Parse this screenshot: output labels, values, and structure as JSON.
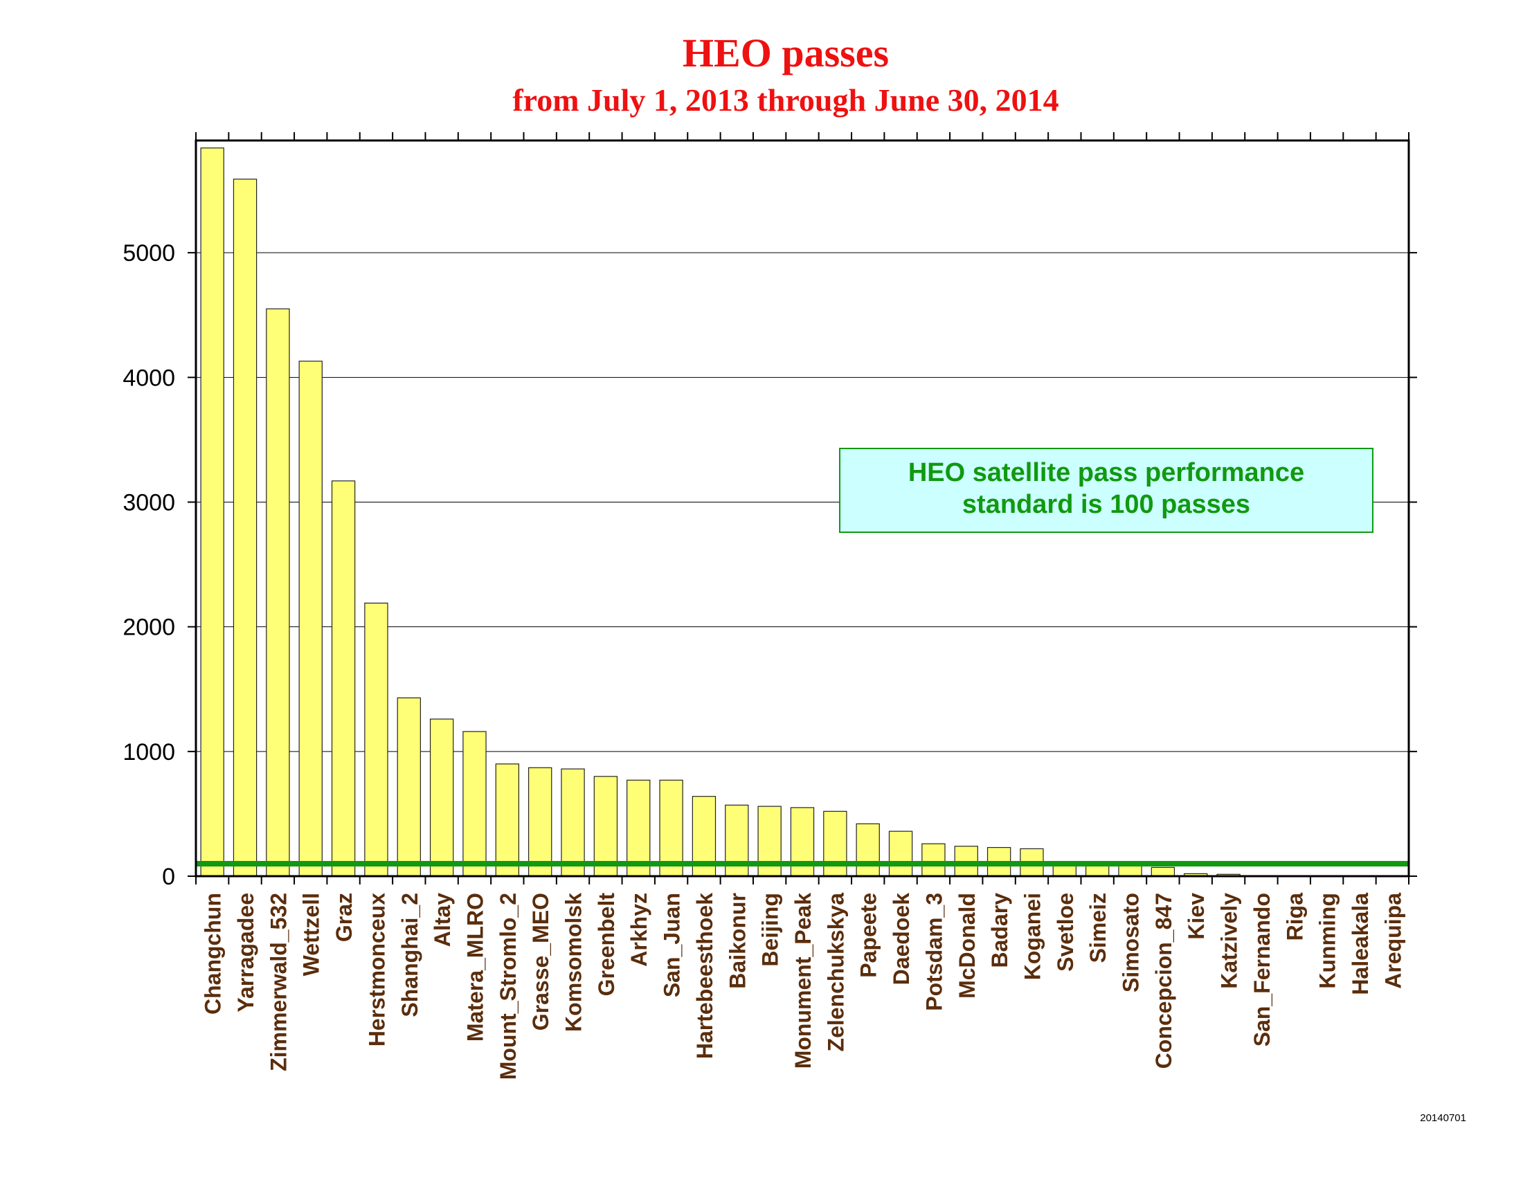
{
  "title": "HEO passes",
  "subtitle": "from July 1, 2013 through June 30, 2014",
  "footnote": "20140701",
  "colors": {
    "title": "#ee1111",
    "bar_fill": "#ffff77",
    "bar_stroke": "#222222",
    "threshold_line": "#119911",
    "tick_label": "#5a2d0c",
    "annotation_fill": "#ccffff",
    "annotation_stroke": "#119911",
    "annotation_text": "#119911",
    "grid": "#000000"
  },
  "annotation": {
    "line1": "HEO satellite pass performance",
    "line2": "standard is 100 passes"
  },
  "chart_data": {
    "type": "bar",
    "title": "HEO passes",
    "subtitle": "from July 1, 2013 through June 30, 2014",
    "xlabel": "",
    "ylabel": "",
    "ylim": [
      0,
      5900
    ],
    "yticks": [
      0,
      1000,
      2000,
      3000,
      4000,
      5000
    ],
    "grid": true,
    "threshold": 100,
    "categories": [
      "Changchun",
      "Yarragadee",
      "Zimmerwald_532",
      "Wettzell",
      "Graz",
      "Herstmonceux",
      "Shanghai_2",
      "Altay",
      "Matera_MLRO",
      "Mount_Stromlo_2",
      "Grasse_MEO",
      "Komsomolsk",
      "Greenbelt",
      "Arkhyz",
      "San_Juan",
      "Hartebeesthoek",
      "Baikonur",
      "Beijing",
      "Monument_Peak",
      "Zelenchukskya",
      "Papeete",
      "Daedoek",
      "Potsdam_3",
      "McDonald",
      "Badary",
      "Koganei",
      "Svetloe",
      "Simeiz",
      "Simosato",
      "Concepcion_847",
      "Kiev",
      "Katzively",
      "San_Fernando",
      "Riga",
      "Kunming",
      "Haleakala",
      "Arequipa"
    ],
    "values": [
      5840,
      5590,
      4550,
      4130,
      3170,
      2190,
      1430,
      1260,
      1160,
      900,
      870,
      860,
      800,
      770,
      770,
      640,
      570,
      560,
      550,
      520,
      420,
      360,
      260,
      240,
      230,
      220,
      100,
      95,
      100,
      70,
      20,
      15,
      3,
      2,
      2,
      1,
      1
    ]
  }
}
